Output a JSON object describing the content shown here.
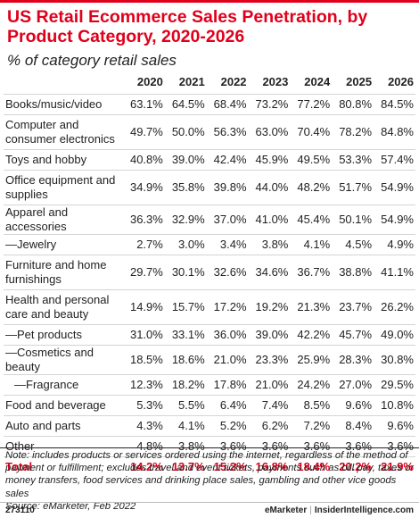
{
  "chart_data": {
    "type": "table",
    "title": "US Retail Ecommerce Sales Penetration, by Product Category, 2020-2026",
    "subtitle": "% of category retail sales",
    "columns": [
      "2020",
      "2021",
      "2022",
      "2023",
      "2024",
      "2025",
      "2026"
    ],
    "rows": [
      {
        "label": "Books/music/video",
        "values": [
          "63.1%",
          "64.5%",
          "68.4%",
          "73.2%",
          "77.2%",
          "80.8%",
          "84.5%"
        ]
      },
      {
        "label": "Computer and consumer electronics",
        "values": [
          "49.7%",
          "50.0%",
          "56.3%",
          "63.0%",
          "70.4%",
          "78.2%",
          "84.8%"
        ]
      },
      {
        "label": "Toys and hobby",
        "values": [
          "40.8%",
          "39.0%",
          "42.4%",
          "45.9%",
          "49.5%",
          "53.3%",
          "57.4%"
        ]
      },
      {
        "label": "Office equipment and supplies",
        "values": [
          "34.9%",
          "35.8%",
          "39.8%",
          "44.0%",
          "48.2%",
          "51.7%",
          "54.9%"
        ]
      },
      {
        "label": "Apparel and accessories",
        "values": [
          "36.3%",
          "32.9%",
          "37.0%",
          "41.0%",
          "45.4%",
          "50.1%",
          "54.9%"
        ]
      },
      {
        "label": "—Jewelry",
        "values": [
          "2.7%",
          "3.0%",
          "3.4%",
          "3.8%",
          "4.1%",
          "4.5%",
          "4.9%"
        ]
      },
      {
        "label": "Furniture and home furnishings",
        "values": [
          "29.7%",
          "30.1%",
          "32.6%",
          "34.6%",
          "36.7%",
          "38.8%",
          "41.1%"
        ]
      },
      {
        "label": "Health and personal care and beauty",
        "values": [
          "14.9%",
          "15.7%",
          "17.2%",
          "19.2%",
          "21.3%",
          "23.7%",
          "26.2%"
        ]
      },
      {
        "label": "—Pet products",
        "values": [
          "31.0%",
          "33.1%",
          "36.0%",
          "39.0%",
          "42.2%",
          "45.7%",
          "49.0%"
        ]
      },
      {
        "label": "—Cosmetics and beauty",
        "values": [
          "18.5%",
          "18.6%",
          "21.0%",
          "23.3%",
          "25.9%",
          "28.3%",
          "30.8%"
        ]
      },
      {
        "label": "—Fragrance",
        "values": [
          "12.3%",
          "18.2%",
          "17.8%",
          "21.0%",
          "24.2%",
          "27.0%",
          "29.5%"
        ]
      },
      {
        "label": "Food and beverage",
        "values": [
          "5.3%",
          "5.5%",
          "6.4%",
          "7.4%",
          "8.5%",
          "9.6%",
          "10.8%"
        ]
      },
      {
        "label": "Auto and parts",
        "values": [
          "4.3%",
          "4.1%",
          "5.2%",
          "6.2%",
          "7.2%",
          "8.4%",
          "9.6%"
        ]
      },
      {
        "label": "Other",
        "values": [
          "4.8%",
          "3.8%",
          "3.6%",
          "3.6%",
          "3.6%",
          "3.6%",
          "3.6%"
        ]
      }
    ],
    "total": {
      "label": "Total",
      "values": [
        "14.2%",
        "13.7%",
        "15.2%",
        "16.8%",
        "18.4%",
        "20.2%",
        "21.9%"
      ]
    },
    "note": "Note: includes products or services ordered using the internet, regardless of the method of payment or fulfillment; excludes travel and event tickets, payments such as bill pay, taxes or money transfers, food services and drinking place sales, gambling and other vice goods sales",
    "source": "Source: eMarketer, Feb 2022"
  },
  "footer": {
    "chart_id": "273110",
    "brand": "eMarketer",
    "separator": "|",
    "site": "InsiderIntelligence.com"
  },
  "colors": {
    "accent": "#e0001b",
    "rule": "#d4d4d4"
  }
}
